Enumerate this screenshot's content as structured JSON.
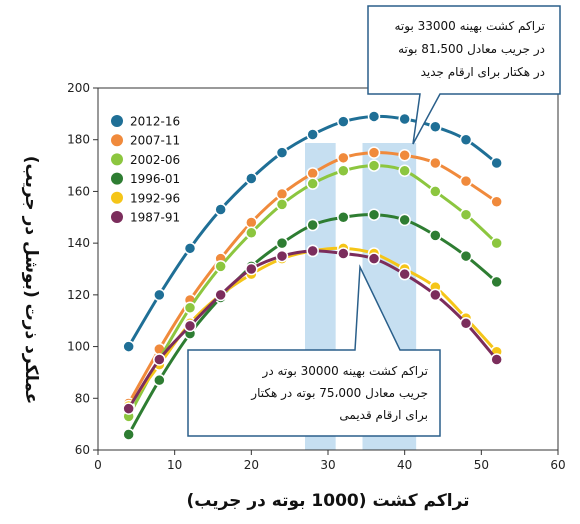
{
  "chart_data": {
    "type": "line",
    "xlabel": "تراکم کشت (1000 بوته در جریب)",
    "ylabel": "عملکرد ذرت (بوشل در جریب)",
    "xlim": [
      0,
      60
    ],
    "ylim": [
      60,
      200
    ],
    "xticks": [
      0,
      10,
      20,
      30,
      40,
      50,
      60
    ],
    "yticks": [
      60,
      80,
      100,
      120,
      140,
      160,
      180,
      200
    ],
    "x": [
      4,
      8,
      12,
      16,
      20,
      24,
      28,
      32,
      36,
      40,
      44,
      48,
      52
    ],
    "series": [
      {
        "name": "2012-16",
        "color": "#1f6f96",
        "values": [
          100,
          120,
          138,
          153,
          165,
          175,
          182,
          187,
          189,
          188,
          185,
          180,
          171
        ]
      },
      {
        "name": "2007-11",
        "color": "#f08a3c",
        "values": [
          78,
          99,
          118,
          134,
          148,
          159,
          167,
          173,
          175,
          174,
          171,
          164,
          156
        ]
      },
      {
        "name": "2002-06",
        "color": "#8cc63f",
        "values": [
          73,
          95,
          115,
          131,
          144,
          155,
          163,
          168,
          170,
          168,
          160,
          151,
          140
        ]
      },
      {
        "name": "1996-01",
        "color": "#2e7d32",
        "values": [
          66,
          87,
          105,
          119,
          131,
          140,
          147,
          150,
          151,
          149,
          143,
          135,
          125
        ]
      },
      {
        "name": "1992-96",
        "color": "#f5c518",
        "values": [
          77,
          93,
          109,
          120,
          128,
          134,
          137,
          138,
          136,
          130,
          123,
          111,
          98
        ]
      },
      {
        "name": "1987-91",
        "color": "#7b2d5c",
        "values": [
          76,
          95,
          108,
          120,
          130,
          135,
          137,
          136,
          134,
          128,
          120,
          109,
          95
        ]
      }
    ],
    "highlight_bands": [
      {
        "x0": 27,
        "x1": 31,
        "label": "تراکم کشت بهینه 30000 بوته در جریب معادل 75،000 بوته در هکتار برای ارقام قدیمی"
      },
      {
        "x0": 34.5,
        "x1": 41.5,
        "label": "تراکم کشت بهینه 33000 بوته در جریب معادل 81،500 بوته در هکتار برای ارقام جدید"
      }
    ],
    "callouts": {
      "new": [
        "تراکم کشت بهینه 33000 بوته",
        "در جریب معادل 81،500 بوته",
        "در هکتار برای ارقام جدید"
      ],
      "old": [
        "تراکم کشت بهینه 30000 بوته در",
        "جریب معادل 75،000 بوته در هکتار",
        "برای ارقام قدیمی"
      ]
    },
    "grid": false,
    "legend": "top-left"
  }
}
